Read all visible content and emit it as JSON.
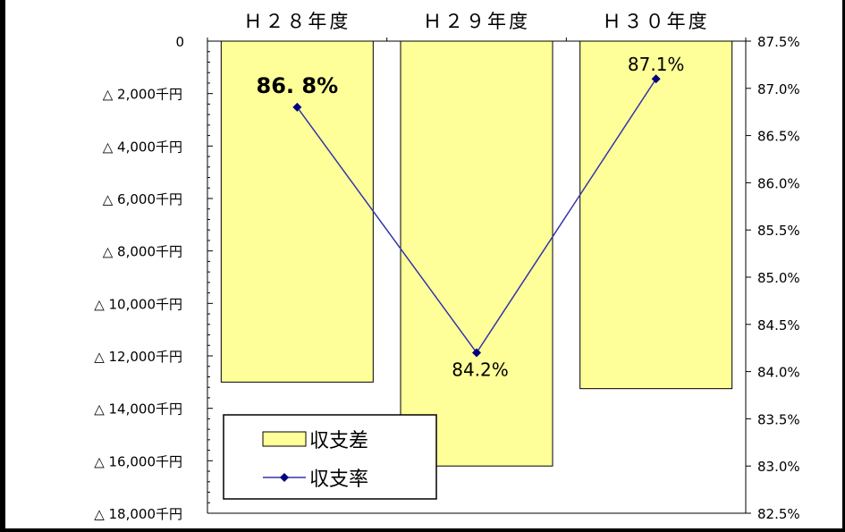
{
  "chart_data": {
    "type": "bar",
    "categories": [
      "Ｈ２８年度",
      "Ｈ２９年度",
      "Ｈ３０年度"
    ],
    "y_left": {
      "ticks": [
        "0",
        "△ 2,000千円",
        "△ 4,000千円",
        "△ 6,000千円",
        "△ 8,000千円",
        "△ 10,000千円",
        "△ 12,000千円",
        "△ 14,000千円",
        "△ 16,000千円",
        "△ 18,000千円"
      ],
      "range": [
        0,
        -18000
      ]
    },
    "y_right": {
      "ticks": [
        "87.5%",
        "87.0%",
        "86.5%",
        "86.0%",
        "85.5%",
        "85.0%",
        "84.5%",
        "84.0%",
        "83.5%",
        "83.0%",
        "82.5%"
      ],
      "range": [
        87.5,
        82.5
      ]
    },
    "series": [
      {
        "name": "収支差",
        "type": "bar",
        "axis": "left",
        "values": [
          -13000,
          -16200,
          -13250
        ],
        "color": "#ffff99"
      },
      {
        "name": "収支率",
        "type": "line",
        "axis": "right",
        "values": [
          86.8,
          84.2,
          87.1
        ],
        "labels": [
          "86. 8%",
          "84.2%",
          "87.1%"
        ],
        "color": "#000080"
      }
    ],
    "legend": {
      "placement": "bottom-left",
      "entries": [
        "収支差",
        "収支率"
      ]
    },
    "grid": false
  }
}
